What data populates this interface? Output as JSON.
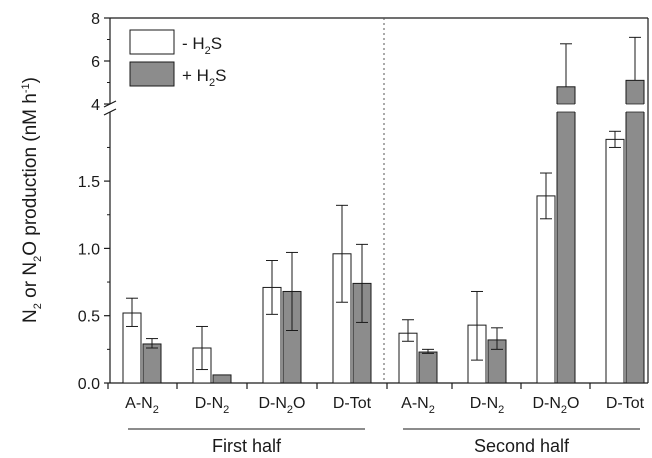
{
  "chart_data": {
    "type": "bar",
    "title": "",
    "ylabel": {
      "parts": [
        [
          "N",
          ""
        ],
        [
          "2",
          "sub"
        ],
        [
          " or N",
          ""
        ],
        [
          "2",
          "sub"
        ],
        [
          "O production (nM h",
          ""
        ],
        [
          "-1",
          "sup"
        ],
        [
          ")",
          ""
        ]
      ]
    },
    "y_axis": {
      "broken": true,
      "lower_range": [
        0,
        2.2
      ],
      "upper_range": [
        4,
        8
      ],
      "lower_ticks": [
        "0.0",
        "0.5",
        "1.0",
        "1.5"
      ],
      "upper_ticks": [
        "4",
        "6",
        "8"
      ]
    },
    "legend": {
      "position": "top-left",
      "entries": [
        {
          "series": "minus",
          "parts": [
            [
              "- H",
              ""
            ],
            [
              "2",
              "sub"
            ],
            [
              "S",
              ""
            ]
          ]
        },
        {
          "series": "plus",
          "parts": [
            [
              "+ H",
              ""
            ],
            [
              "2",
              "sub"
            ],
            [
              "S",
              ""
            ]
          ]
        }
      ]
    },
    "colors": {
      "minus": "#ffffff",
      "plus": "#8c8c8c",
      "stroke": "#1a1a1a",
      "divider": "#555555"
    },
    "groups": [
      {
        "label": "First half"
      },
      {
        "label": "Second half"
      }
    ],
    "categories": [
      {
        "group": 0,
        "parts": [
          [
            "A-N",
            ""
          ],
          [
            "2",
            "sub"
          ]
        ]
      },
      {
        "group": 0,
        "parts": [
          [
            "D-N",
            ""
          ],
          [
            "2",
            "sub"
          ]
        ]
      },
      {
        "group": 0,
        "parts": [
          [
            "D-N",
            ""
          ],
          [
            "2",
            "sub"
          ],
          [
            "O",
            ""
          ]
        ]
      },
      {
        "group": 0,
        "parts": [
          [
            "D-Tot",
            ""
          ]
        ]
      },
      {
        "group": 1,
        "parts": [
          [
            "A-N",
            ""
          ],
          [
            "2",
            "sub"
          ]
        ]
      },
      {
        "group": 1,
        "parts": [
          [
            "D-N",
            ""
          ],
          [
            "2",
            "sub"
          ]
        ]
      },
      {
        "group": 1,
        "parts": [
          [
            "D-N",
            ""
          ],
          [
            "2",
            "sub"
          ],
          [
            "O",
            ""
          ]
        ]
      },
      {
        "group": 1,
        "parts": [
          [
            "D-Tot",
            ""
          ]
        ]
      }
    ],
    "series": [
      {
        "key": "minus",
        "values": [
          0.52,
          0.26,
          0.71,
          0.96,
          0.37,
          0.43,
          1.39,
          1.81
        ],
        "err_low": [
          0.1,
          0.16,
          0.2,
          0.36,
          0.06,
          0.26,
          0.17,
          0.06
        ],
        "err_high": [
          0.11,
          0.16,
          0.2,
          0.36,
          0.1,
          0.25,
          0.17,
          0.06
        ]
      },
      {
        "key": "plus",
        "values": [
          0.29,
          0.06,
          0.68,
          0.74,
          0.23,
          0.32,
          4.8,
          5.1
        ],
        "err_low": [
          0.03,
          0.0,
          0.29,
          0.29,
          0.01,
          0.07,
          0.0,
          0.0
        ],
        "err_high": [
          0.04,
          0.0,
          0.29,
          0.29,
          0.02,
          0.09,
          2.0,
          2.0
        ]
      }
    ]
  }
}
